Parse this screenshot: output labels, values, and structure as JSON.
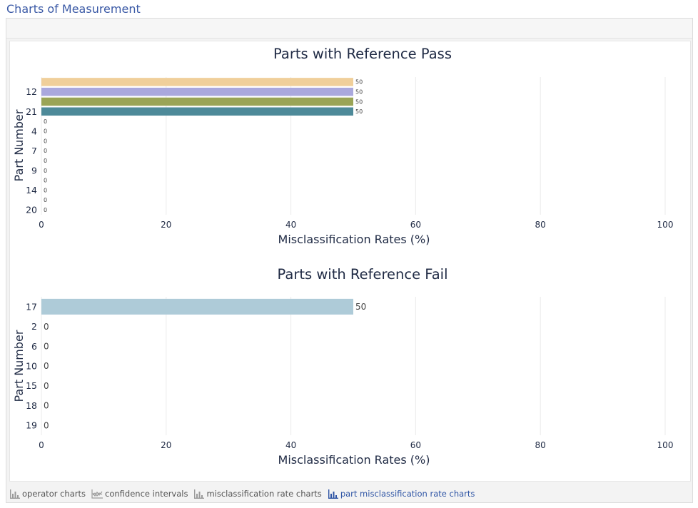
{
  "page": {
    "title": "Charts of Measurement"
  },
  "chart_data": [
    {
      "type": "bar",
      "orientation": "horizontal",
      "title": "Parts with Reference Pass",
      "xlabel": "Misclassification Rates (%)",
      "ylabel": "Part Number",
      "xlim": [
        0,
        100
      ],
      "xticks": [
        0,
        20,
        40,
        60,
        80,
        100
      ],
      "categories": [
        "12",
        "21",
        "4",
        "7",
        "9",
        "14",
        "20"
      ],
      "bars": [
        {
          "part": "",
          "value": 50,
          "label": "50",
          "color": "#f0cf9a"
        },
        {
          "part": "12",
          "value": 50,
          "label": "50",
          "color": "#aaa8dd"
        },
        {
          "part": "",
          "value": 50,
          "label": "50",
          "color": "#9aa456"
        },
        {
          "part": "21",
          "value": 50,
          "label": "50",
          "color": "#4e8a99"
        },
        {
          "part": "",
          "value": 0,
          "label": "0",
          "color": "#cccccc"
        },
        {
          "part": "4",
          "value": 0,
          "label": "0",
          "color": "#cccccc"
        },
        {
          "part": "",
          "value": 0,
          "label": "0",
          "color": "#cccccc"
        },
        {
          "part": "7",
          "value": 0,
          "label": "0",
          "color": "#cccccc"
        },
        {
          "part": "",
          "value": 0,
          "label": "0",
          "color": "#cccccc"
        },
        {
          "part": "9",
          "value": 0,
          "label": "0",
          "color": "#cccccc"
        },
        {
          "part": "",
          "value": 0,
          "label": "0",
          "color": "#cccccc"
        },
        {
          "part": "14",
          "value": 0,
          "label": "0",
          "color": "#cccccc"
        },
        {
          "part": "",
          "value": 0,
          "label": "0",
          "color": "#cccccc"
        },
        {
          "part": "20",
          "value": 0,
          "label": "0",
          "color": "#cccccc"
        }
      ]
    },
    {
      "type": "bar",
      "orientation": "horizontal",
      "title": "Parts with Reference Fail",
      "xlabel": "Misclassification Rates (%)",
      "ylabel": "Part Number",
      "xlim": [
        0,
        100
      ],
      "xticks": [
        0,
        20,
        40,
        60,
        80,
        100
      ],
      "categories": [
        "17",
        "2",
        "6",
        "10",
        "15",
        "18",
        "19"
      ],
      "bars": [
        {
          "part": "17",
          "value": 50,
          "label": "50",
          "color": "#aecbd8"
        },
        {
          "part": "2",
          "value": 0,
          "label": "0",
          "color": "#aecbd8"
        },
        {
          "part": "6",
          "value": 0,
          "label": "0",
          "color": "#aecbd8"
        },
        {
          "part": "10",
          "value": 0,
          "label": "0",
          "color": "#aecbd8"
        },
        {
          "part": "15",
          "value": 0,
          "label": "0",
          "color": "#aecbd8"
        },
        {
          "part": "18",
          "value": 0,
          "label": "0",
          "color": "#aecbd8"
        },
        {
          "part": "19",
          "value": 0,
          "label": "0",
          "color": "#aecbd8"
        }
      ]
    }
  ],
  "footer": {
    "links": [
      {
        "label": "operator charts",
        "icon": "bar-chart-icon",
        "active": false
      },
      {
        "label": "confidence intervals",
        "icon": "line-chart-icon",
        "active": false
      },
      {
        "label": "misclassification rate charts",
        "icon": "bar-chart-icon",
        "active": false
      },
      {
        "label": "part misclassification rate charts",
        "icon": "bar-chart-icon",
        "active": true
      }
    ]
  },
  "colors": {
    "title": "#3b5aa6",
    "active_link": "#2f55a5",
    "inactive_link": "#555555",
    "axis_text": "#1f2a44"
  }
}
